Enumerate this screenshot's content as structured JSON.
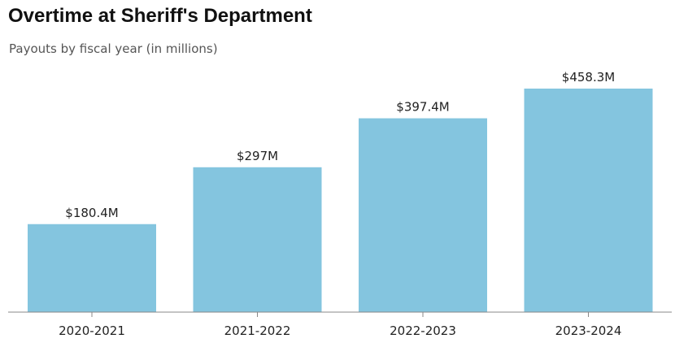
{
  "chart_data": {
    "type": "bar",
    "title": "Overtime at Sheriff's Department",
    "subtitle": "Payouts by fiscal year (in millions)",
    "categories": [
      "2020-2021",
      "2021-2022",
      "2022-2023",
      "2023-2024"
    ],
    "values": [
      180.4,
      297,
      397.4,
      458.3
    ],
    "data_labels": [
      "$180.4M",
      "$297M",
      "$397.4M",
      "$458.3M"
    ],
    "xlabel": "",
    "ylabel": "",
    "ylim": [
      0,
      458.3
    ],
    "grid": false,
    "legend": "none",
    "bar_color": "#84c5df",
    "axis_color": "#888888"
  }
}
